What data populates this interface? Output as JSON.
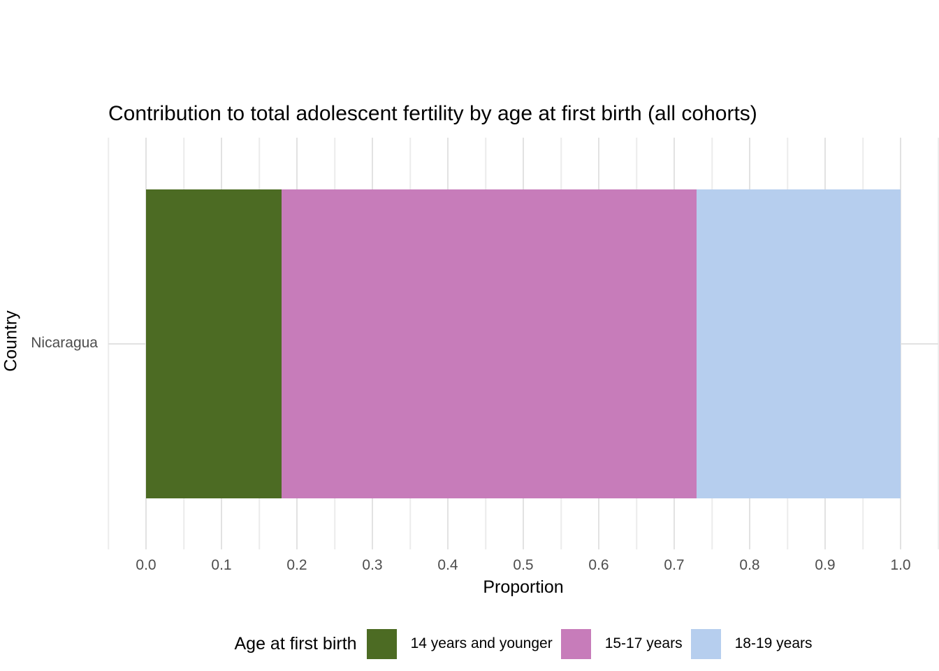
{
  "chart_data": {
    "type": "bar",
    "orientation": "horizontal",
    "stacked": true,
    "title": "Contribution to total adolescent fertility by age at first birth (all cohorts)",
    "xlabel": "Proportion",
    "ylabel": "Country",
    "categories": [
      "Nicaragua"
    ],
    "series": [
      {
        "name": "14 years and younger",
        "values": [
          0.18
        ],
        "color": "#4C6B23"
      },
      {
        "name": "15-17 years",
        "values": [
          0.55
        ],
        "color": "#C77CBA"
      },
      {
        "name": "18-19 years",
        "values": [
          0.27
        ],
        "color": "#B6CEEE"
      }
    ],
    "xlim": [
      0,
      1
    ],
    "x_major_ticks": [
      0.0,
      0.1,
      0.2,
      0.3,
      0.4,
      0.5,
      0.6,
      0.7,
      0.8,
      0.9,
      1.0
    ],
    "x_tick_labels": [
      "0.0",
      "0.1",
      "0.2",
      "0.3",
      "0.4",
      "0.5",
      "0.6",
      "0.7",
      "0.8",
      "0.9",
      "1.0"
    ],
    "grid": {
      "vertical_major": true,
      "vertical_minor": true,
      "horizontal_major": true
    },
    "legend_position": "bottom"
  },
  "legend": {
    "title": "Age at first birth"
  },
  "colors": {
    "background": "#FFFFFF",
    "tick_text": "#4D4D4D",
    "title_text": "#000000",
    "grid_major": "#E2E2E2",
    "grid_minor": "#ECECEC"
  }
}
